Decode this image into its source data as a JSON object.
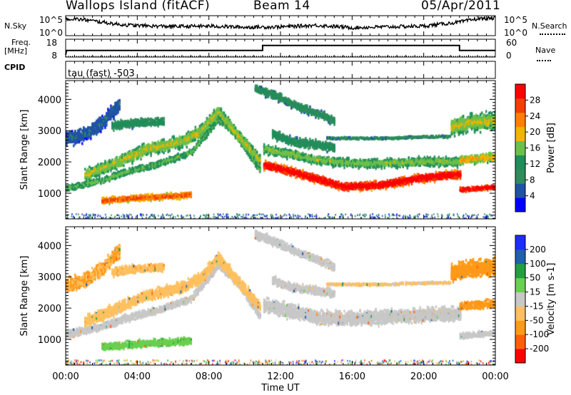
{
  "header": {
    "title": "Wallops Island (fitACF)",
    "beam": "Beam 14",
    "date": "05/Apr/2011"
  },
  "side_labels": {
    "nsky": "N.Sky",
    "nsearch": "N.Search",
    "freq_top": "Freq.",
    "freq_unit": "[MHz]",
    "nave": "Nave",
    "cpid": "CPID"
  },
  "colors": {
    "power_scale": [
      "#0000ff",
      "#2052a8",
      "#2f8c5c",
      "#1e8e5b",
      "#6cc04a",
      "#f2b400",
      "#ff8000",
      "#f04000",
      "#ff0000"
    ],
    "velocity_scale": [
      "#ff0000",
      "#ff6000",
      "#ff9a1a",
      "#ffc060",
      "#c8c8c8",
      "#6ad050",
      "#20a040",
      "#2060b0",
      "#1e2dff"
    ],
    "ground_scatter": "#c8c8c8"
  },
  "chart_data": [
    {
      "type": "line",
      "name": "noise-panel",
      "title": "",
      "left_ticks": [
        "10^5",
        "10^0"
      ],
      "right_ticks": [
        "10^5",
        "10^0"
      ],
      "series": [
        {
          "name": "N.Sky",
          "x": [
            0,
            1,
            2,
            3,
            4,
            6,
            8,
            10,
            12,
            14,
            16,
            18,
            20,
            22,
            23,
            24
          ],
          "y_log": [
            4.3,
            4.0,
            3.4,
            2.8,
            2.5,
            2.3,
            2.4,
            2.1,
            2.2,
            2.6,
            2.0,
            2.2,
            2.4,
            3.4,
            4.2,
            4.4
          ]
        }
      ]
    },
    {
      "type": "line",
      "name": "frequency-panel",
      "left_ticks": [
        "18",
        "8"
      ],
      "right_ticks": [
        "60",
        "0"
      ],
      "series": [
        {
          "name": "Freq.",
          "x": [
            0,
            0.05,
            11.0,
            11.0,
            22.0,
            22.0,
            24.0
          ],
          "y": [
            7,
            10.5,
            10.5,
            14.8,
            14.8,
            10.5,
            10.5
          ]
        },
        {
          "name": "Nave",
          "x": [
            0,
            24
          ],
          "y": [
            0,
            0
          ]
        }
      ]
    },
    {
      "type": "heatmap",
      "name": "cpid-panel",
      "annotation": "tau (fast) -503"
    },
    {
      "type": "heatmap",
      "name": "power-panel",
      "xlabel": "",
      "ylabel": "Slant Range [km]",
      "xlim": [
        0,
        24
      ],
      "ylim": [
        180,
        4600
      ],
      "y_ticks": [
        1000,
        2000,
        3000,
        4000
      ],
      "colorbar": {
        "label": "Power [dB]",
        "ticks": [
          4,
          8,
          12,
          16,
          20,
          24,
          28
        ]
      },
      "scatter_bands": [
        {
          "x": [
            0.0,
            2.0,
            3.5,
            5.0,
            7.0,
            8.5,
            9.5,
            10.8
          ],
          "y": [
            1200,
            1450,
            1750,
            1950,
            2350,
            3400,
            2900,
            1800
          ],
          "width_km": 220,
          "intensity": 12
        },
        {
          "x": [
            1.0,
            2.5,
            4.5,
            6.5,
            7.5,
            8.5,
            9.5,
            10.8
          ],
          "y": [
            1600,
            1950,
            2450,
            2700,
            3000,
            3650,
            2950,
            2100
          ],
          "width_km": 450,
          "intensity": 14
        },
        {
          "x": [
            2.0,
            4.0,
            6.0,
            7.0
          ],
          "y": [
            800,
            900,
            950,
            1000
          ],
          "width_km": 220,
          "intensity": 20
        },
        {
          "x": [
            11.0,
            12.5,
            14.0,
            15.5,
            17.5,
            19.5,
            21.0,
            22.0
          ],
          "y": [
            1950,
            1750,
            1500,
            1250,
            1300,
            1500,
            1600,
            1650
          ],
          "width_km": 300,
          "intensity": 25
        },
        {
          "x": [
            11.0,
            12.5,
            14.0,
            16.0,
            18.0,
            20.0,
            22.0
          ],
          "y": [
            2450,
            2300,
            2100,
            2000,
            2000,
            2050,
            2050
          ],
          "width_km": 320,
          "intensity": 13
        },
        {
          "x": [
            14.5,
            16.0,
            18.0,
            20.0,
            21.5
          ],
          "y": [
            2800,
            2800,
            2800,
            2850,
            2850
          ],
          "width_km": 80,
          "intensity": 8
        },
        {
          "x": [
            10.5,
            11.5,
            13.0,
            14.0,
            15.0
          ],
          "y": [
            4400,
            4200,
            3800,
            3600,
            3350
          ],
          "width_km": 300,
          "intensity": 9
        },
        {
          "x": [
            11.5,
            12.5,
            14.0,
            15.0
          ],
          "y": [
            2950,
            2700,
            2600,
            2500
          ],
          "width_km": 320,
          "intensity": 10
        },
        {
          "x": [
            22.0,
            23.0,
            24.0
          ],
          "y": [
            1150,
            1200,
            1250
          ],
          "width_km": 180,
          "intensity": 24
        },
        {
          "x": [
            22.0,
            23.0,
            24.0
          ],
          "y": [
            2100,
            2150,
            2200
          ],
          "width_km": 300,
          "intensity": 16
        },
        {
          "x": [
            21.5,
            22.5,
            24.0
          ],
          "y": [
            3150,
            3300,
            3350
          ],
          "width_km": 600,
          "intensity": 14
        },
        {
          "x": [
            2.5,
            4.0,
            5.5
          ],
          "y": [
            3200,
            3300,
            3350
          ],
          "width_km": 300,
          "intensity": 10
        },
        {
          "x": [
            0.0,
            1.0,
            2.0,
            3.0
          ],
          "y": [
            2800,
            2900,
            3300,
            3900
          ],
          "width_km": 500,
          "intensity": 6
        }
      ]
    },
    {
      "type": "heatmap",
      "name": "velocity-panel",
      "xlabel": "Time UT",
      "ylabel": "Slant Range [km]",
      "xlim": [
        0,
        24
      ],
      "ylim": [
        180,
        4600
      ],
      "x_ticks": [
        "00:00",
        "04:00",
        "08:00",
        "12:00",
        "16:00",
        "20:00",
        "00:00"
      ],
      "y_ticks": [
        1000,
        2000,
        3000,
        4000
      ],
      "colorbar": {
        "label": "Velocity [m s-1]",
        "ticks": [
          -200,
          -100,
          -50,
          -15,
          15,
          50,
          100,
          200
        ]
      },
      "scatter_bands": [
        {
          "x": [
            0.0,
            2.0,
            3.5,
            5.0,
            7.0,
            8.5,
            9.5,
            10.8
          ],
          "y": [
            1200,
            1450,
            1750,
            1950,
            2350,
            3400,
            2900,
            1800
          ],
          "width_km": 260,
          "velocity": 0
        },
        {
          "x": [
            1.0,
            2.5,
            4.5,
            6.5,
            7.5,
            8.5,
            9.5,
            10.8
          ],
          "y": [
            1600,
            1950,
            2450,
            2700,
            3000,
            3650,
            2950,
            2100
          ],
          "width_km": 400,
          "velocity": -30
        },
        {
          "x": [
            2.0,
            4.0,
            6.0,
            7.0
          ],
          "y": [
            800,
            900,
            950,
            1000
          ],
          "width_km": 260,
          "velocity": 40
        },
        {
          "x": [
            11.0,
            12.5,
            14.0,
            15.5,
            17.5,
            19.5,
            21.0,
            22.0
          ],
          "y": [
            2150,
            1950,
            1750,
            1700,
            1750,
            1800,
            1850,
            1850
          ],
          "width_km": 500,
          "velocity": 0
        },
        {
          "x": [
            10.5,
            11.5,
            13.0,
            14.0,
            15.0
          ],
          "y": [
            4400,
            4200,
            3800,
            3600,
            3350
          ],
          "width_km": 300,
          "velocity": 0
        },
        {
          "x": [
            11.5,
            12.5,
            14.0,
            15.0
          ],
          "y": [
            2950,
            2700,
            2600,
            2500
          ],
          "width_km": 300,
          "velocity": 0
        },
        {
          "x": [
            14.5,
            16.0,
            18.0,
            20.0,
            21.5
          ],
          "y": [
            2800,
            2800,
            2800,
            2850,
            2850
          ],
          "width_km": 80,
          "velocity": -20
        },
        {
          "x": [
            22.0,
            23.0,
            24.0
          ],
          "y": [
            1150,
            1200,
            1250
          ],
          "width_km": 200,
          "velocity": 0
        },
        {
          "x": [
            22.0,
            23.0,
            24.0
          ],
          "y": [
            2100,
            2150,
            2200
          ],
          "width_km": 300,
          "velocity": -60
        },
        {
          "x": [
            21.5,
            22.5,
            24.0
          ],
          "y": [
            3150,
            3300,
            3350
          ],
          "width_km": 600,
          "velocity": -70
        },
        {
          "x": [
            2.5,
            4.0,
            5.5
          ],
          "y": [
            3200,
            3300,
            3350
          ],
          "width_km": 300,
          "velocity": -40
        },
        {
          "x": [
            0.0,
            1.0,
            2.0,
            3.0
          ],
          "y": [
            2800,
            2900,
            3300,
            3900
          ],
          "width_km": 500,
          "velocity": -50
        }
      ]
    }
  ]
}
